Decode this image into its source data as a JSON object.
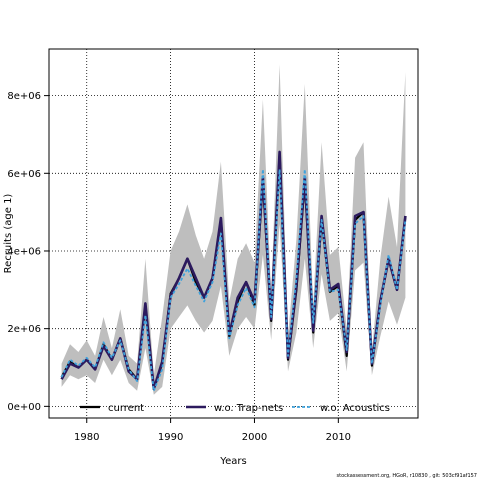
{
  "chart_data": {
    "type": "line",
    "xlabel": "Years",
    "ylabel": "Recruits (age 1)",
    "xlim": [
      1975.5,
      2019.5
    ],
    "ylim": [
      -300000,
      9200000
    ],
    "xticks": [
      1980,
      1990,
      2000,
      2010
    ],
    "yticks": [
      0,
      2000000,
      4000000,
      6000000,
      8000000
    ],
    "ytick_labels": [
      "0e+00",
      "2e+06",
      "4e+06",
      "6e+06",
      "8e+06"
    ],
    "grid": true,
    "legend_position": "bottom",
    "x": [
      1977,
      1978,
      1979,
      1980,
      1981,
      1982,
      1983,
      1984,
      1985,
      1986,
      1987,
      1988,
      1989,
      1990,
      1991,
      1992,
      1993,
      1994,
      1995,
      1996,
      1997,
      1998,
      1999,
      2000,
      2001,
      2002,
      2003,
      2004,
      2005,
      2006,
      2007,
      2008,
      2009,
      2010,
      2011,
      2012,
      2013,
      2014,
      2015,
      2016,
      2017,
      2018
    ],
    "band": {
      "color": "#bebebe",
      "lower": [
        500000,
        800000,
        700000,
        800000,
        600000,
        1200000,
        800000,
        1200000,
        600000,
        400000,
        1500000,
        300000,
        500000,
        2000000,
        2300000,
        2600000,
        2200000,
        1900000,
        2200000,
        3100000,
        1300000,
        2000000,
        2300000,
        2000000,
        3900000,
        1700000,
        4700000,
        900000,
        1900000,
        3800000,
        1500000,
        3400000,
        2200000,
        2400000,
        900000,
        3500000,
        3700000,
        800000,
        1800000,
        2700000,
        2100000,
        2800000
      ],
      "upper": [
        1100000,
        1600000,
        1400000,
        1700000,
        1300000,
        2300000,
        1500000,
        2500000,
        1300000,
        1100000,
        3800000,
        800000,
        2300000,
        4000000,
        4500000,
        5200000,
        4400000,
        3800000,
        4500000,
        6300000,
        2700000,
        3800000,
        4200000,
        3700000,
        7900000,
        2900000,
        8800000,
        1800000,
        4300000,
        8300000,
        2600000,
        6800000,
        3900000,
        4100000,
        2000000,
        6400000,
        6800000,
        1400000,
        3800000,
        5400000,
        4100000,
        8600000
      ]
    },
    "series": [
      {
        "name": "current",
        "color": "#000000",
        "width": 2.2,
        "dash": "",
        "values": [
          750000,
          1150000,
          1000000,
          1200000,
          950000,
          1600000,
          1200000,
          1750000,
          950000,
          700000,
          2600000,
          450000,
          1100000,
          2900000,
          3300000,
          3800000,
          3200000,
          2800000,
          3300000,
          4800000,
          1800000,
          2700000,
          3200000,
          2600000,
          5800000,
          2200000,
          6500000,
          1200000,
          3000000,
          5800000,
          1900000,
          4800000,
          2950000,
          3100000,
          1300000,
          4800000,
          5000000,
          1050000,
          2700000,
          3800000,
          3000000,
          4900000
        ]
      },
      {
        "name": "w.o. Trap-nets",
        "color": "#2c1a5e",
        "width": 2.6,
        "dash": "",
        "values": [
          700000,
          1100000,
          1000000,
          1200000,
          950000,
          1550000,
          1200000,
          1750000,
          900000,
          700000,
          2650000,
          450000,
          1150000,
          2850000,
          3300000,
          3800000,
          3300000,
          2800000,
          3300000,
          4850000,
          1850000,
          2800000,
          3200000,
          2700000,
          5900000,
          2250000,
          6550000,
          1250000,
          3100000,
          5900000,
          1950000,
          4900000,
          3000000,
          3150000,
          1400000,
          4900000,
          5000000,
          1100000,
          2700000,
          3800000,
          3000000,
          4900000
        ]
      },
      {
        "name": "w.o. Acoustics",
        "color": "#3fa2dc",
        "width": 1.8,
        "dash": "3,2",
        "values": [
          750000,
          1200000,
          1050000,
          1250000,
          1000000,
          1650000,
          1250000,
          1700000,
          950000,
          650000,
          2350000,
          400000,
          950000,
          2800000,
          3150000,
          3550000,
          3100000,
          2700000,
          3200000,
          4450000,
          1750000,
          2600000,
          3050000,
          2550000,
          6100000,
          2300000,
          6100000,
          1300000,
          3300000,
          6100000,
          2150000,
          4800000,
          2950000,
          3000000,
          1450000,
          4700000,
          4900000,
          1100000,
          2600000,
          3900000,
          3000000,
          4800000
        ]
      }
    ]
  },
  "footer_text": "stockassessment.org, HGoR, r10830 , git: 503cf91af157"
}
